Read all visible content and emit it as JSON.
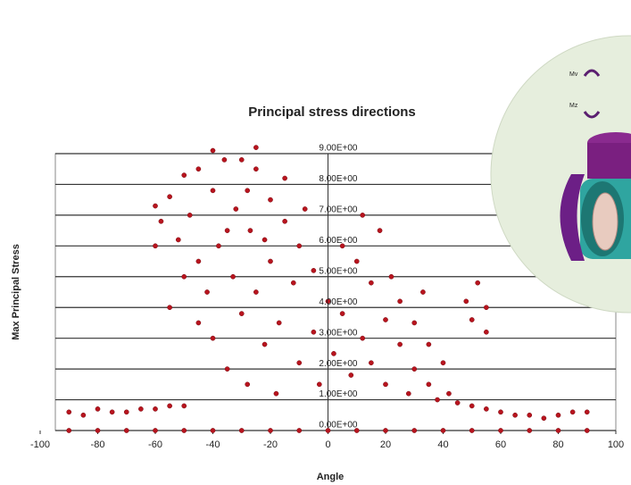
{
  "chart_data": {
    "type": "scatter",
    "title": "Principal stress directions",
    "x_label": "Angle",
    "y_label": "Max Principal Stress",
    "color": "#b8141e",
    "x": [
      -90,
      -80,
      -70,
      -60,
      -50,
      -40,
      -30,
      -20,
      -10,
      0,
      10,
      20,
      30,
      40,
      50,
      60,
      70,
      80,
      90,
      -90,
      -85,
      -80,
      -75,
      -70,
      -65,
      -60,
      -55,
      -50,
      60,
      65,
      70,
      75,
      80,
      85,
      90,
      55,
      50,
      -60,
      -58,
      -55,
      -52,
      -50,
      -48,
      -45,
      -45,
      -42,
      -40,
      -40,
      -38,
      -36,
      -35,
      -33,
      -32,
      -30,
      -30,
      -28,
      -27,
      -25,
      -25,
      -22,
      -20,
      -20,
      -18,
      -17,
      -15,
      -15,
      -12,
      -10,
      -10,
      -8,
      -5,
      -5,
      -3,
      0,
      2,
      5,
      5,
      8,
      10,
      12,
      12,
      15,
      15,
      18,
      20,
      20,
      22,
      25,
      25,
      28,
      30,
      30,
      33,
      35,
      35,
      38,
      40,
      42,
      45,
      48,
      50,
      52,
      55,
      55,
      -50,
      -55,
      -45,
      -35,
      -28,
      -22,
      -60,
      -40,
      -25
    ],
    "values": [
      0,
      0,
      0,
      0,
      0,
      0,
      0,
      0,
      0,
      0,
      0,
      0,
      0,
      0,
      0,
      0,
      0,
      0,
      0,
      0.6,
      0.5,
      0.7,
      0.6,
      0.6,
      0.7,
      0.7,
      0.8,
      0.8,
      0.6,
      0.5,
      0.5,
      0.4,
      0.5,
      0.6,
      0.6,
      0.7,
      0.8,
      7.3,
      6.8,
      7.6,
      6.2,
      8.3,
      7.0,
      5.5,
      8.5,
      4.5,
      7.8,
      3.0,
      6.0,
      8.8,
      2.0,
      5.0,
      7.2,
      8.8,
      3.8,
      1.5,
      6.5,
      8.5,
      4.5,
      2.8,
      7.5,
      5.5,
      1.2,
      3.5,
      6.8,
      8.2,
      4.8,
      2.2,
      6.0,
      7.2,
      3.2,
      5.2,
      1.5,
      4.2,
      2.5,
      6.0,
      3.8,
      1.8,
      5.5,
      7.0,
      3.0,
      2.2,
      4.8,
      6.5,
      1.5,
      3.6,
      5.0,
      2.8,
      4.2,
      1.2,
      3.5,
      2.0,
      4.5,
      1.5,
      2.8,
      1.0,
      2.2,
      1.2,
      0.9,
      4.2,
      3.6,
      4.8,
      4.0,
      3.2,
      5.0,
      4.0,
      3.5,
      6.5,
      7.8,
      6.2,
      6.0,
      9.1,
      9.2
    ],
    "xlim": [
      -100,
      100
    ],
    "xticks": [
      -100,
      -80,
      -60,
      -40,
      -20,
      0,
      20,
      40,
      60,
      80,
      100
    ],
    "ylim": [
      0,
      9
    ],
    "yticks": [
      {
        "value": 0,
        "label": "0.00E+00"
      },
      {
        "value": 1,
        "label": "1.00E+00"
      },
      {
        "value": 2,
        "label": "2.00E+00"
      },
      {
        "value": 3,
        "label": "3.00E+00"
      },
      {
        "value": 4,
        "label": "4.00E+00"
      },
      {
        "value": 5,
        "label": "5.00E+00"
      },
      {
        "value": 6,
        "label": "6.00E+00"
      },
      {
        "value": 7,
        "label": "7.00E+00"
      },
      {
        "value": 8,
        "label": "8.00E+00"
      },
      {
        "value": 9,
        "label": "9.00E+00"
      }
    ],
    "grid": true
  },
  "inset": {
    "labels": [
      "Mv",
      "Mz"
    ]
  }
}
